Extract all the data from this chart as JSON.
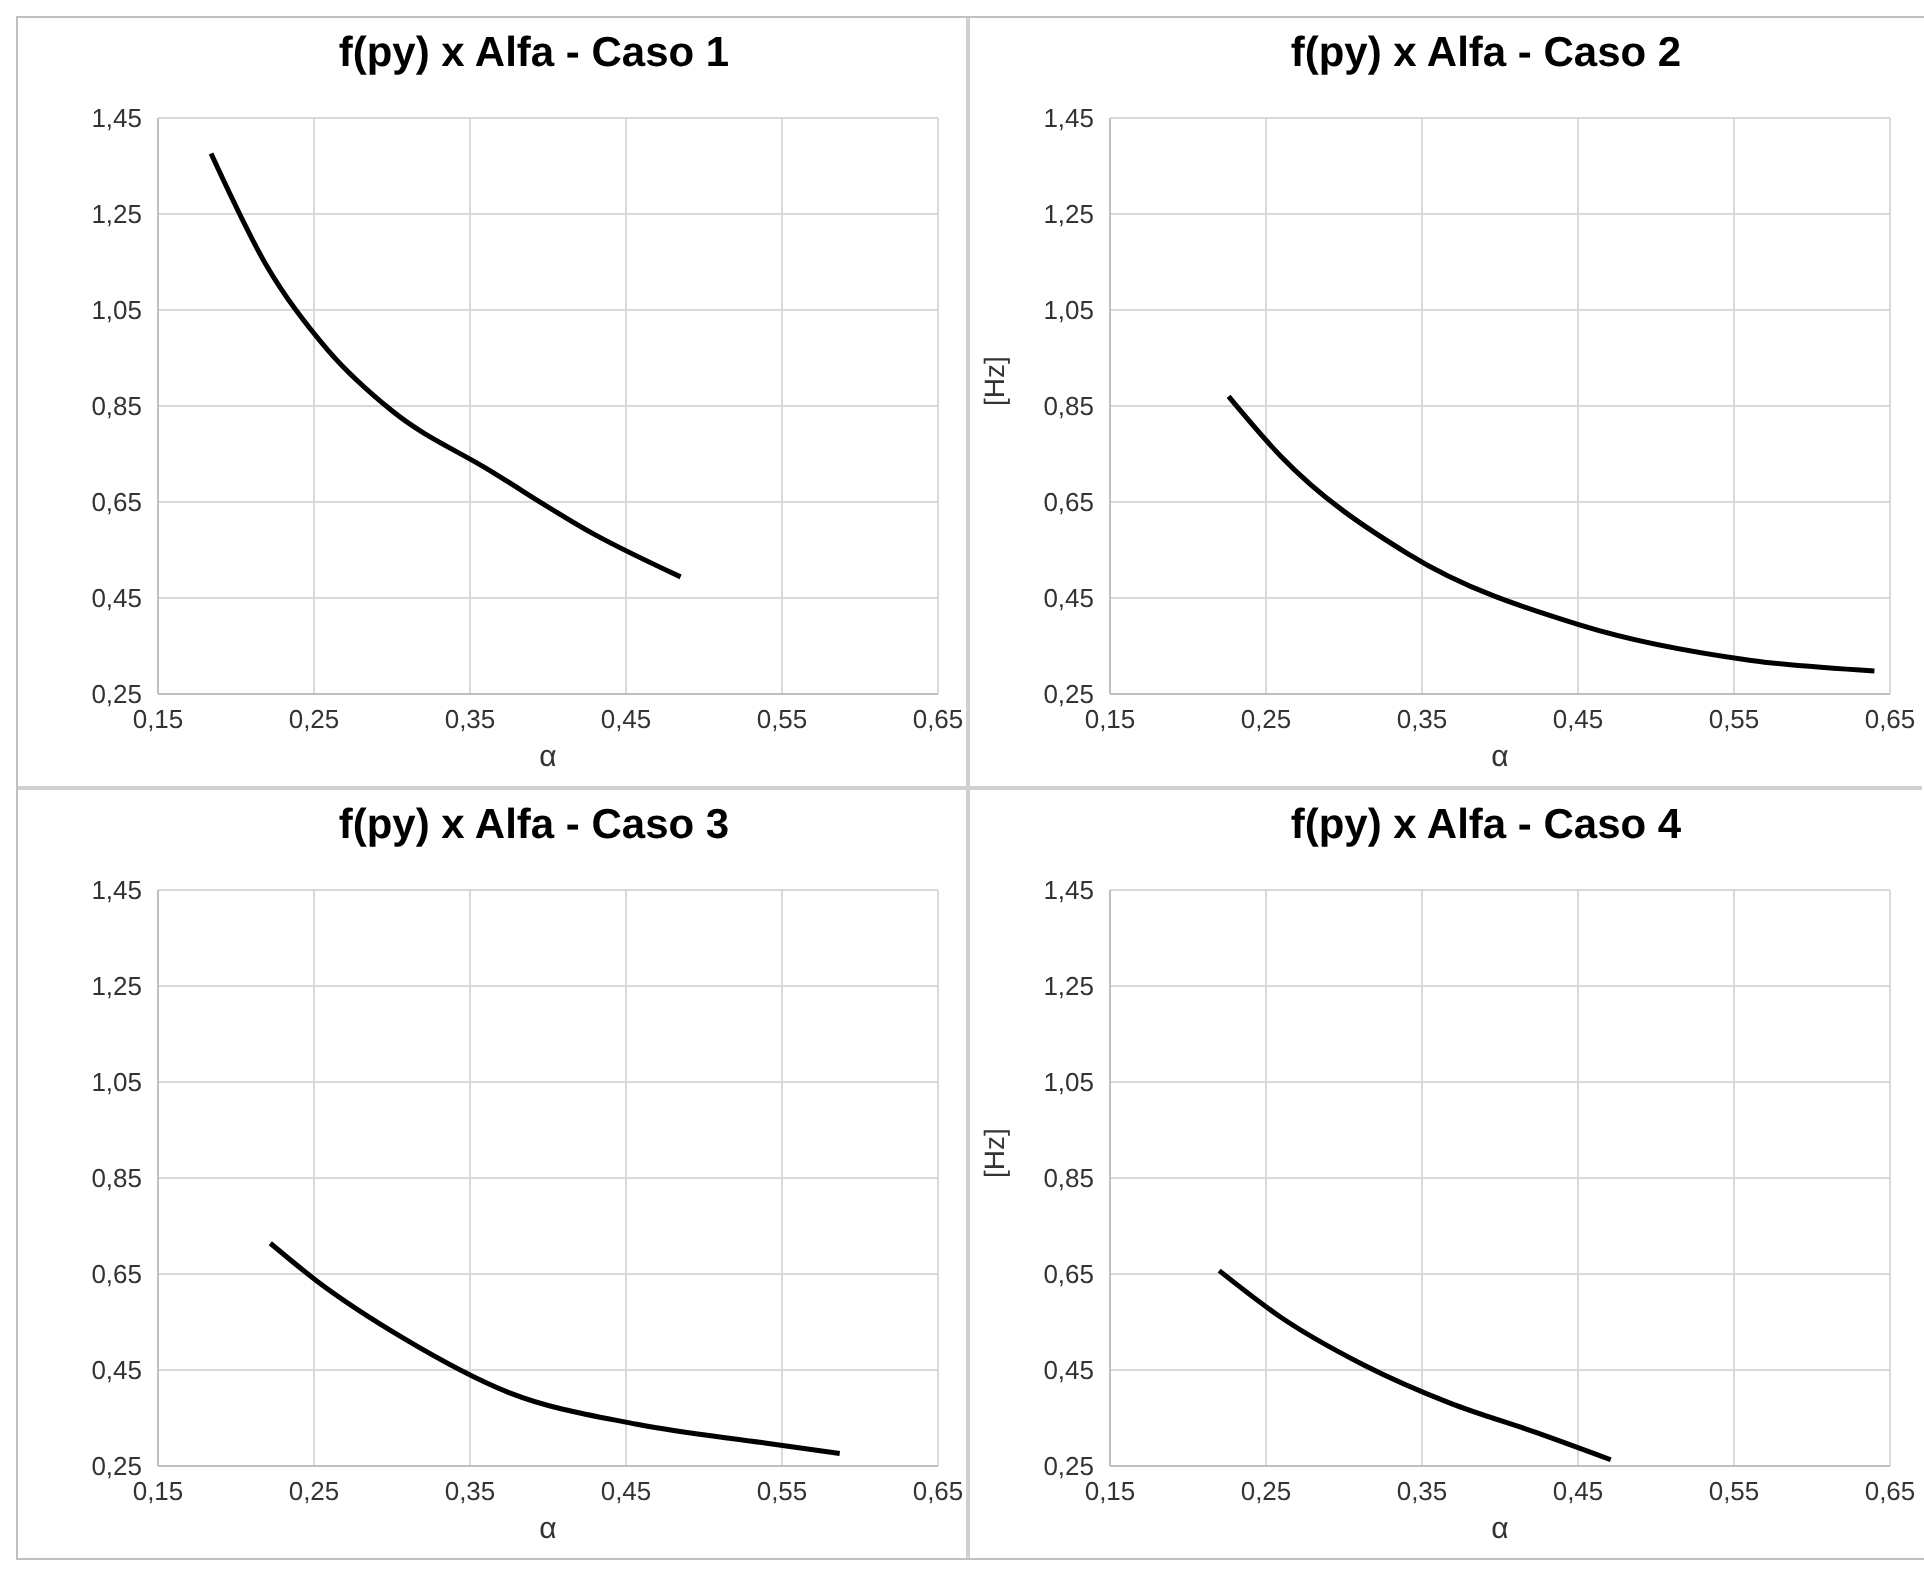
{
  "chart_data": [
    {
      "type": "line",
      "title": "f(py) x Alfa - Caso 1",
      "xlabel": "α",
      "color": "#000000",
      "grid": true,
      "x": [
        0.184,
        0.22,
        0.259,
        0.3,
        0.362,
        0.43,
        0.485
      ],
      "values": [
        1.376,
        1.14,
        0.966,
        0.84,
        0.717,
        0.582,
        0.494
      ],
      "xlim": [
        0.15,
        0.65
      ],
      "ylim": [
        0.25,
        1.45
      ],
      "xticks": [
        {
          "value": 0.15,
          "label": "0,15"
        },
        {
          "value": 0.25,
          "label": "0,25"
        },
        {
          "value": 0.35,
          "label": "0,35"
        },
        {
          "value": 0.45,
          "label": "0,45"
        },
        {
          "value": 0.55,
          "label": "0,55"
        },
        {
          "value": 0.65,
          "label": "0,65"
        }
      ],
      "yticks": [
        {
          "value": 0.25,
          "label": "0,25"
        },
        {
          "value": 0.45,
          "label": "0,45"
        },
        {
          "value": 0.65,
          "label": "0,65"
        },
        {
          "value": 0.85,
          "label": "0,85"
        },
        {
          "value": 1.05,
          "label": "1,05"
        },
        {
          "value": 1.25,
          "label": "1,25"
        },
        {
          "value": 1.45,
          "label": "1,45"
        }
      ]
    },
    {
      "type": "line",
      "title": "f(py) x Alfa - Caso 2",
      "xlabel": "α",
      "ylabel": "[Hz]",
      "color": "#000000",
      "grid": true,
      "x": [
        0.226,
        0.259,
        0.341,
        0.451,
        0.561,
        0.64
      ],
      "values": [
        0.87,
        0.747,
        0.542,
        0.394,
        0.32,
        0.298
      ],
      "xlim": [
        0.15,
        0.65
      ],
      "ylim": [
        0.25,
        1.45
      ],
      "xticks": [
        {
          "value": 0.15,
          "label": "0,15"
        },
        {
          "value": 0.25,
          "label": "0,25"
        },
        {
          "value": 0.35,
          "label": "0,35"
        },
        {
          "value": 0.45,
          "label": "0,45"
        },
        {
          "value": 0.55,
          "label": "0,55"
        },
        {
          "value": 0.65,
          "label": "0,65"
        }
      ],
      "yticks": [
        {
          "value": 0.25,
          "label": "0,25"
        },
        {
          "value": 0.45,
          "label": "0,45"
        },
        {
          "value": 0.65,
          "label": "0,65"
        },
        {
          "value": 0.85,
          "label": "0,85"
        },
        {
          "value": 1.05,
          "label": "1,05"
        },
        {
          "value": 1.25,
          "label": "1,25"
        },
        {
          "value": 1.45,
          "label": "1,45"
        }
      ]
    },
    {
      "type": "line",
      "title": "f(py) x Alfa - Caso 3",
      "xlabel": "α",
      "color": "#000000",
      "grid": true,
      "x": [
        0.222,
        0.252,
        0.307,
        0.375,
        0.457,
        0.539,
        0.587
      ],
      "values": [
        0.714,
        0.635,
        0.517,
        0.403,
        0.337,
        0.298,
        0.276
      ],
      "xlim": [
        0.15,
        0.65
      ],
      "ylim": [
        0.25,
        1.45
      ],
      "xticks": [
        {
          "value": 0.15,
          "label": "0,15"
        },
        {
          "value": 0.25,
          "label": "0,25"
        },
        {
          "value": 0.35,
          "label": "0,35"
        },
        {
          "value": 0.45,
          "label": "0,45"
        },
        {
          "value": 0.55,
          "label": "0,55"
        },
        {
          "value": 0.65,
          "label": "0,65"
        }
      ],
      "yticks": [
        {
          "value": 0.25,
          "label": "0,25"
        },
        {
          "value": 0.45,
          "label": "0,45"
        },
        {
          "value": 0.65,
          "label": "0,65"
        },
        {
          "value": 0.85,
          "label": "0,85"
        },
        {
          "value": 1.05,
          "label": "1,05"
        },
        {
          "value": 1.25,
          "label": "1,25"
        },
        {
          "value": 1.45,
          "label": "1,45"
        }
      ]
    },
    {
      "type": "line",
      "title": "f(py) x Alfa - Caso 4",
      "xlabel": "α",
      "ylabel": "[Hz]",
      "color": "#000000",
      "grid": true,
      "x": [
        0.22,
        0.259,
        0.313,
        0.368,
        0.423,
        0.471
      ],
      "values": [
        0.657,
        0.561,
        0.46,
        0.381,
        0.32,
        0.263
      ],
      "xlim": [
        0.15,
        0.65
      ],
      "ylim": [
        0.25,
        1.45
      ],
      "xticks": [
        {
          "value": 0.15,
          "label": "0,15"
        },
        {
          "value": 0.25,
          "label": "0,25"
        },
        {
          "value": 0.35,
          "label": "0,35"
        },
        {
          "value": 0.45,
          "label": "0,45"
        },
        {
          "value": 0.55,
          "label": "0,55"
        },
        {
          "value": 0.65,
          "label": "0,65"
        }
      ],
      "yticks": [
        {
          "value": 0.25,
          "label": "0,25"
        },
        {
          "value": 0.45,
          "label": "0,45"
        },
        {
          "value": 0.65,
          "label": "0,65"
        },
        {
          "value": 0.85,
          "label": "0,85"
        },
        {
          "value": 1.05,
          "label": "1,05"
        },
        {
          "value": 1.25,
          "label": "1,25"
        },
        {
          "value": 1.45,
          "label": "1,45"
        }
      ]
    }
  ]
}
